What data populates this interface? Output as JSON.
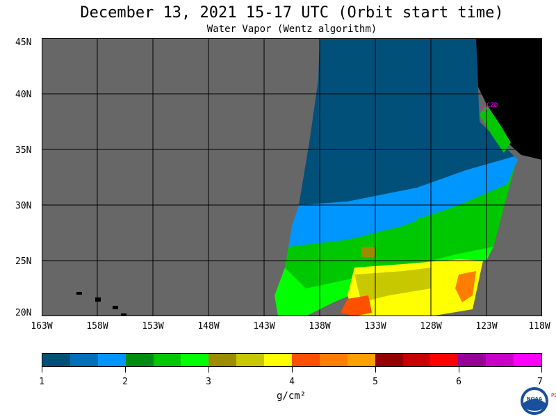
{
  "title": "December 13, 2021  15-17 UTC  (Orbit start time)",
  "subtitle": "Water Vapor (Wentz algorithm)",
  "lat_labels": [
    "45N",
    "40N",
    "35N",
    "30N",
    "25N",
    "20N"
  ],
  "lon_labels": [
    "163W",
    "158W",
    "153W",
    "148W",
    "143W",
    "138W",
    "133W",
    "128W",
    "123W",
    "118W"
  ],
  "colorbar": {
    "colors": [
      "#00507a",
      "#0070b8",
      "#0096ff",
      "#008c14",
      "#00c800",
      "#00ff00",
      "#9b8c00",
      "#c8c800",
      "#ffff00",
      "#ff5000",
      "#ff7d00",
      "#ffa000",
      "#960000",
      "#c80000",
      "#ff0000",
      "#960096",
      "#c800c8",
      "#ff00ff"
    ],
    "labels": [
      "1",
      "2",
      "3",
      "4",
      "5",
      "6",
      "7"
    ],
    "unit": "g/cm²"
  },
  "station_label": "CZD",
  "map": {
    "lat_range": [
      20,
      45
    ],
    "lon_range": [
      -163,
      -118
    ],
    "colors": {
      "no_data": "#676767",
      "land": "#000000",
      "grid": "#000000",
      "station": "#ff00ff"
    }
  },
  "logo": {
    "name": "NOAA",
    "side_text": "PSL"
  }
}
